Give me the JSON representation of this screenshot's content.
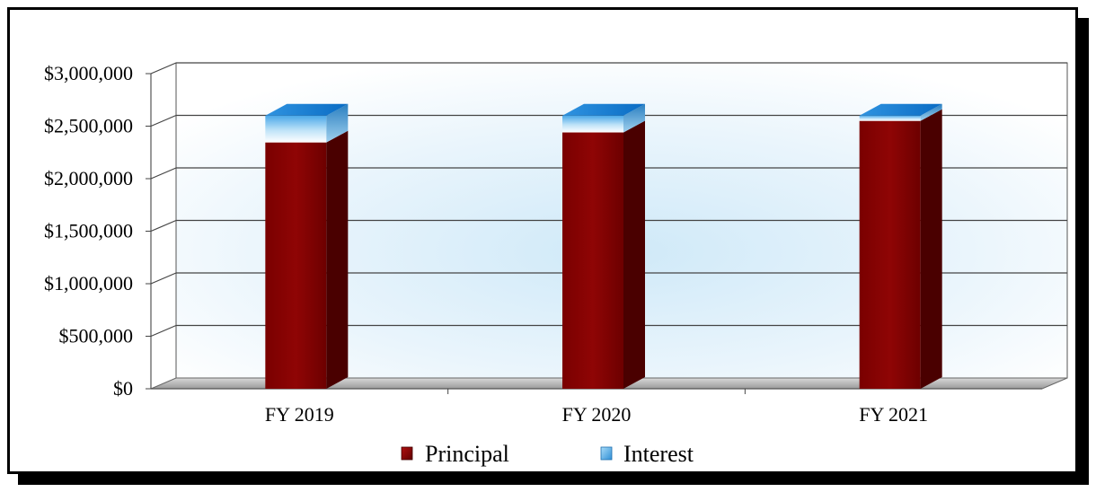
{
  "chart_data": {
    "type": "bar",
    "stacked": true,
    "categories": [
      "FY 2019",
      "FY 2020",
      "FY 2021"
    ],
    "series": [
      {
        "name": "Principal",
        "values": [
          2345000,
          2440000,
          2550000
        ],
        "color": "#8b0000"
      },
      {
        "name": "Interest",
        "values": [
          255000,
          160000,
          50000
        ],
        "color": "#1e90ff"
      }
    ],
    "y_ticks": [
      "$0",
      "$500,000",
      "$1,000,000",
      "$1,500,000",
      "$2,000,000",
      "$2,500,000",
      "$3,000,000"
    ],
    "ylim": [
      0,
      3000000
    ],
    "grid": true,
    "legend_position": "bottom",
    "title": "",
    "xlabel": "",
    "ylabel": ""
  }
}
